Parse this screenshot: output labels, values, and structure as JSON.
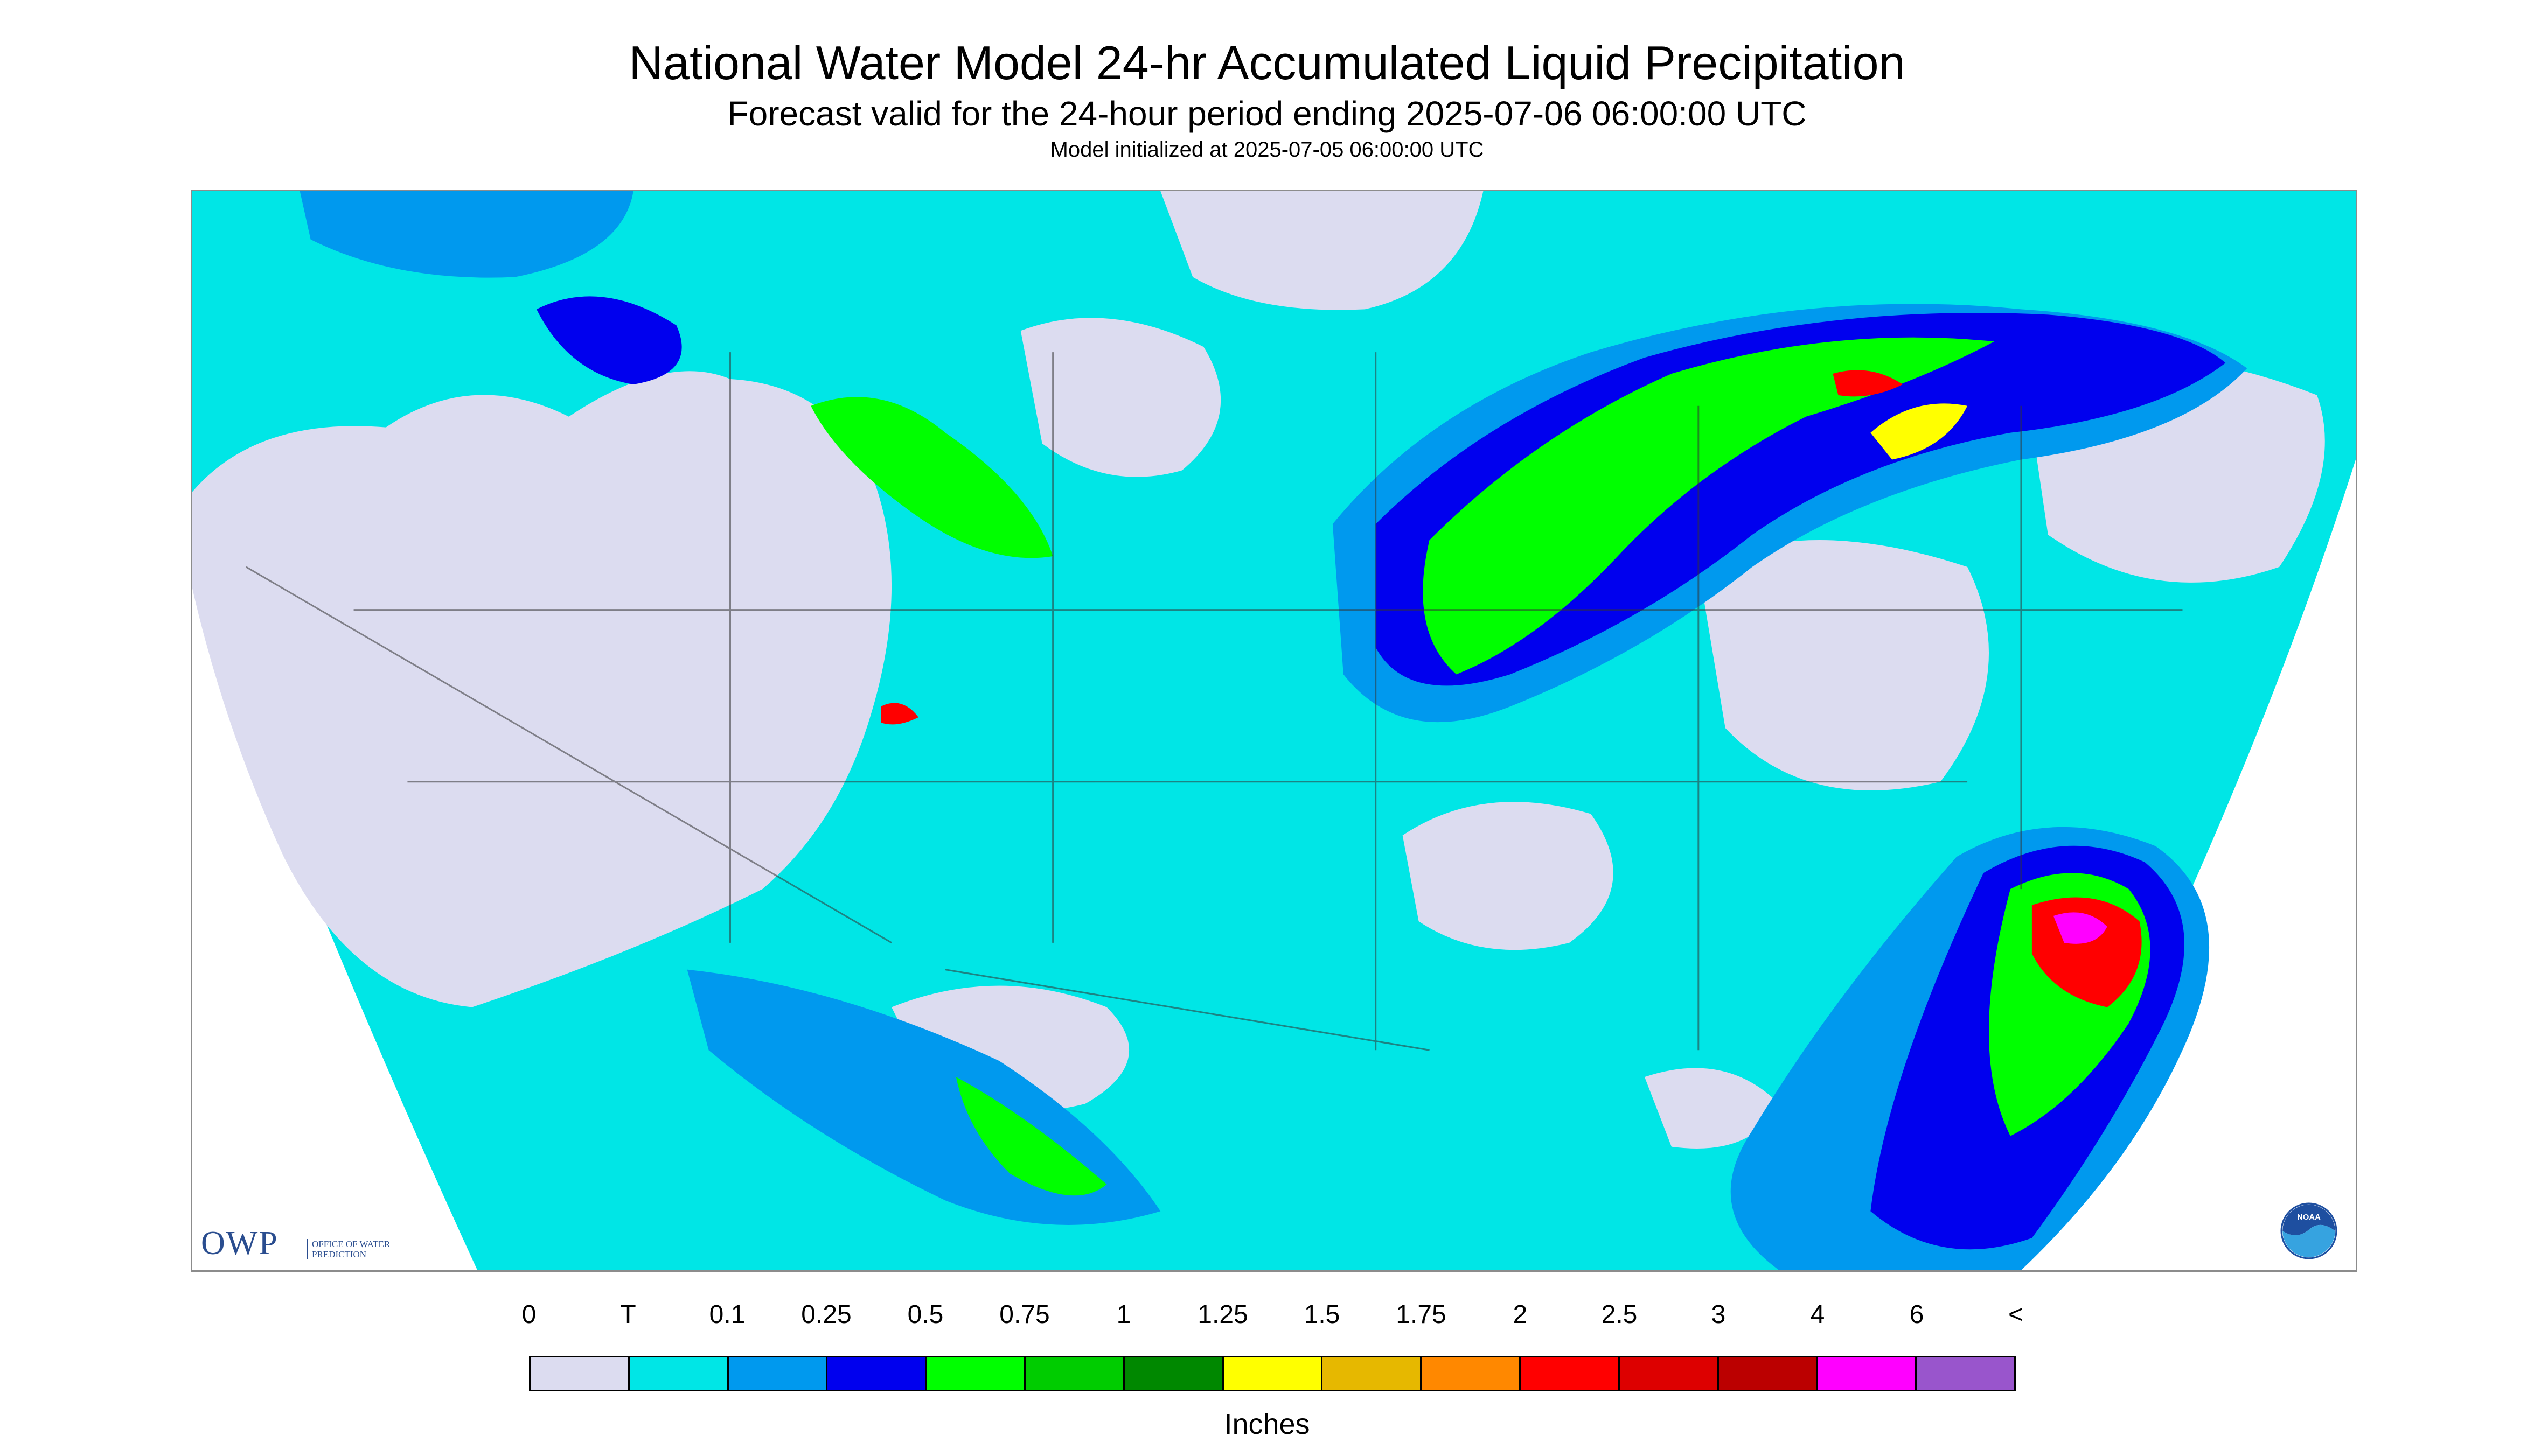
{
  "header": {
    "title": "National Water Model 24-hr Accumulated Liquid Precipitation",
    "subtitle": "Forecast valid for the 24-hour period ending 2025-07-06 06:00:00 UTC",
    "init": "Model initialized at 2025-07-05 06:00:00 UTC"
  },
  "logos": {
    "owp": "OWP",
    "owp_sub": "Office of Water Prediction",
    "noaa": "NOAA"
  },
  "legend": {
    "ticks": [
      "0",
      "T",
      "0.1",
      "0.25",
      "0.5",
      "0.75",
      "1",
      "1.25",
      "1.5",
      "1.75",
      "2",
      "2.5",
      "3",
      "4",
      "6",
      "<"
    ],
    "colors": [
      "#dcdcf0",
      "#00e6e6",
      "#0099ee",
      "#0000ee",
      "#00ff00",
      "#00cc00",
      "#008800",
      "#ffff00",
      "#e6b800",
      "#ff8800",
      "#ff0000",
      "#dd0000",
      "#bb0000",
      "#ff00ff",
      "#9955cc"
    ],
    "units": "Inches"
  },
  "colors": {
    "no_data": "#dcdcf0",
    "trace": "#00e6e6",
    "light": "#0099ee",
    "moderate": "#0000ee",
    "heavy": "#00ff00",
    "very_heavy": "#ff0000",
    "extreme": "#ff00ff"
  }
}
